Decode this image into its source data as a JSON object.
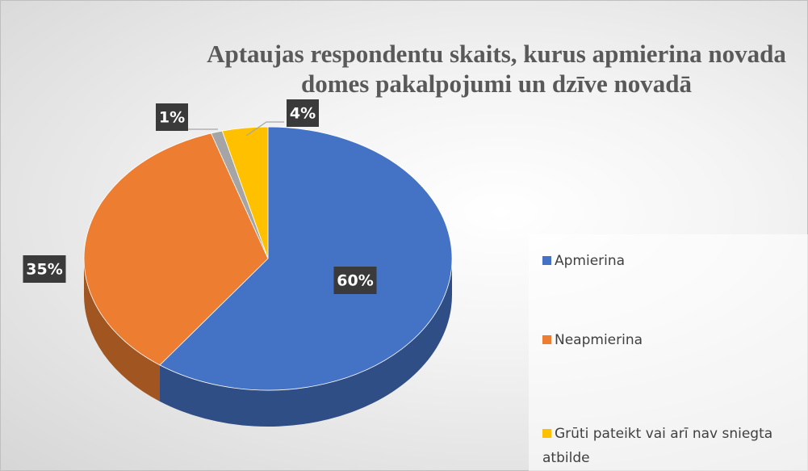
{
  "chart_data": {
    "type": "pie",
    "title": "Aptaujas respondentu skaits, kurus apmierina novada domes pakalpojumi un dzīve novadā",
    "categories": [
      "Apmierina",
      "Neapmierina",
      null,
      "Grūti pateikt vai arī nav sniegta atbilde"
    ],
    "values": [
      60,
      35,
      1,
      4
    ],
    "value_labels": [
      "60%",
      "35%",
      "1%",
      "4%"
    ],
    "colors": [
      "#4472c4",
      "#ed7d31",
      "#a5a5a5",
      "#ffc000"
    ],
    "legend": "right"
  }
}
